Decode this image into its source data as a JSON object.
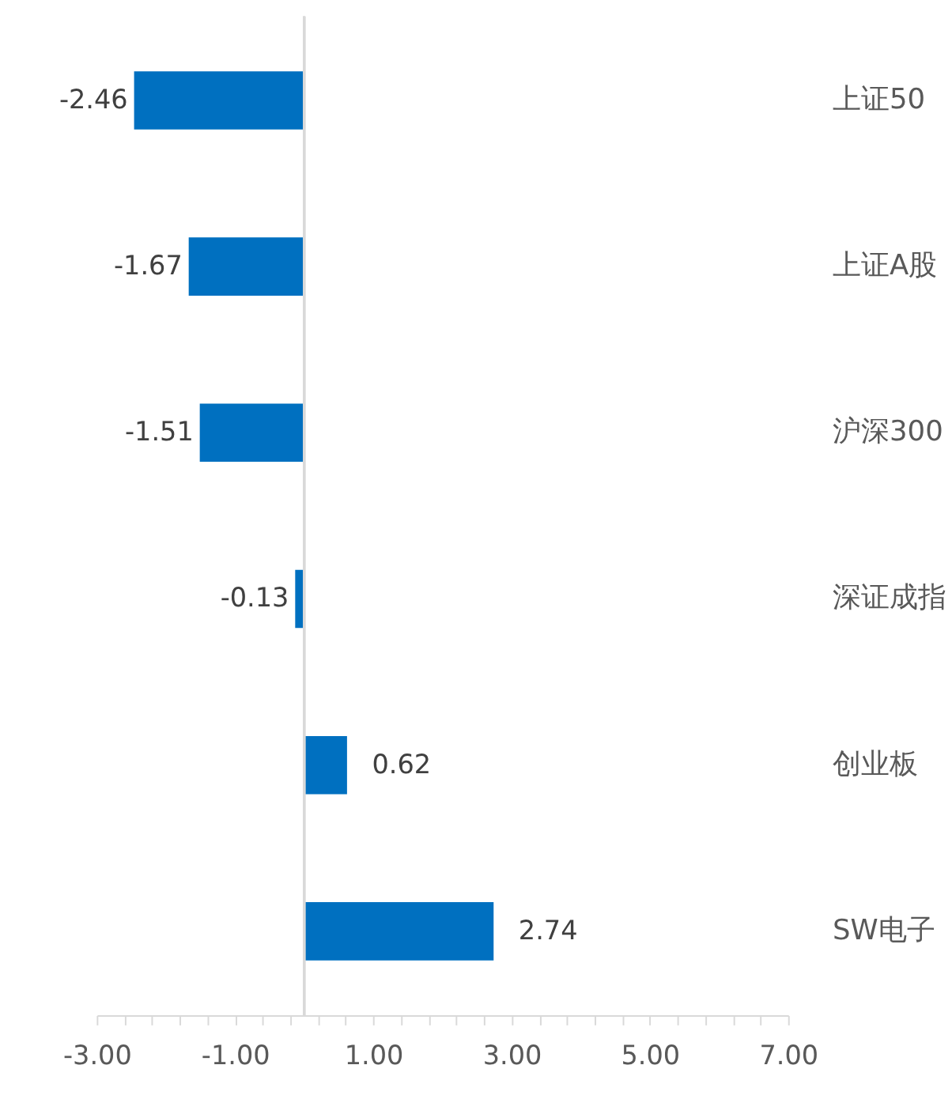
{
  "chart_data": {
    "type": "bar",
    "orientation": "horizontal",
    "categories": [
      "上证50",
      "上证A股",
      "沪深300",
      "深证成指",
      "创业板",
      "SW电子"
    ],
    "values": [
      -2.46,
      -1.67,
      -1.51,
      -0.13,
      0.62,
      2.74
    ],
    "color": "#0070c0",
    "data_labels": true,
    "grid": false,
    "legend": false,
    "xlim": [
      -3,
      7
    ],
    "xticks": [
      {
        "value": -3,
        "label": "-3.00"
      },
      {
        "value": -2.6,
        "label": null
      },
      {
        "value": -2.2,
        "label": null
      },
      {
        "value": -1.8,
        "label": null
      },
      {
        "value": -1.4,
        "label": null
      },
      {
        "value": -1,
        "label": "-1.00"
      },
      {
        "value": -0.6,
        "label": null
      },
      {
        "value": -0.2,
        "label": null
      },
      {
        "value": 0.2,
        "label": null
      },
      {
        "value": 0.6,
        "label": null
      },
      {
        "value": 1,
        "label": "1.00"
      },
      {
        "value": 1.4,
        "label": null
      },
      {
        "value": 1.8,
        "label": null
      },
      {
        "value": 2.2,
        "label": null
      },
      {
        "value": 2.6,
        "label": null
      },
      {
        "value": 3,
        "label": "3.00"
      },
      {
        "value": 3.4,
        "label": null
      },
      {
        "value": 3.8,
        "label": null
      },
      {
        "value": 4.2,
        "label": null
      },
      {
        "value": 4.6,
        "label": null
      },
      {
        "value": 5,
        "label": "5.00"
      },
      {
        "value": 5.4,
        "label": null
      },
      {
        "value": 5.8,
        "label": null
      },
      {
        "value": 6.2,
        "label": null
      },
      {
        "value": 6.6,
        "label": null
      },
      {
        "value": 7,
        "label": "7.00"
      }
    ]
  }
}
